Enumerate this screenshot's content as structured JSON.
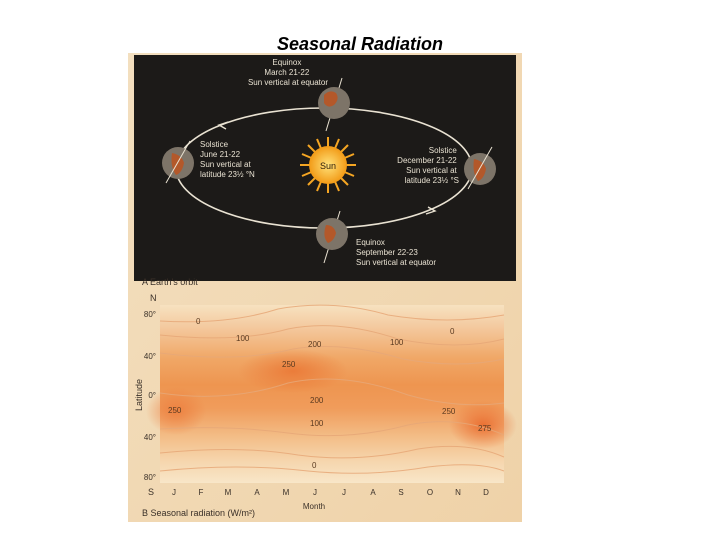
{
  "slide": {
    "title": "Seasonal Radiation"
  },
  "orbit": {
    "caption": "A  Earth's orbit",
    "sun_label": "Sun",
    "equinox_march": [
      "Equinox",
      "March 21-22",
      "Sun vertical at equator"
    ],
    "solstice_june": [
      "Solstice",
      "June 21-22",
      "Sun vertical at",
      "latitude 23½ °N"
    ],
    "solstice_december": [
      "Solstice",
      "December 21-22",
      "Sun vertical at",
      "latitude 23½ °S"
    ],
    "equinox_september": [
      "Equinox",
      "September 22-23",
      "Sun vertical at equator"
    ]
  },
  "radiation_chart": {
    "caption": "B  Seasonal radiation  (W/m²)",
    "north_label": "N",
    "south_label": "S",
    "y_axis_label": "Latitude",
    "x_axis_label": "Month",
    "y_ticks": [
      "80°",
      "40°",
      "0°",
      "40°",
      "80°"
    ],
    "months": [
      "J",
      "F",
      "M",
      "A",
      "M",
      "J",
      "J",
      "A",
      "S",
      "O",
      "N",
      "D"
    ],
    "contour_labels": [
      "0",
      "100",
      "200",
      "100",
      "0",
      "250",
      "200",
      "250",
      "250",
      "100",
      "275",
      "0"
    ]
  },
  "colors": {
    "orbit_background": "#1c1a18",
    "paper": "#f2dcb8",
    "chart_low": "#f6dcb4",
    "chart_high": "#ef7d34"
  }
}
